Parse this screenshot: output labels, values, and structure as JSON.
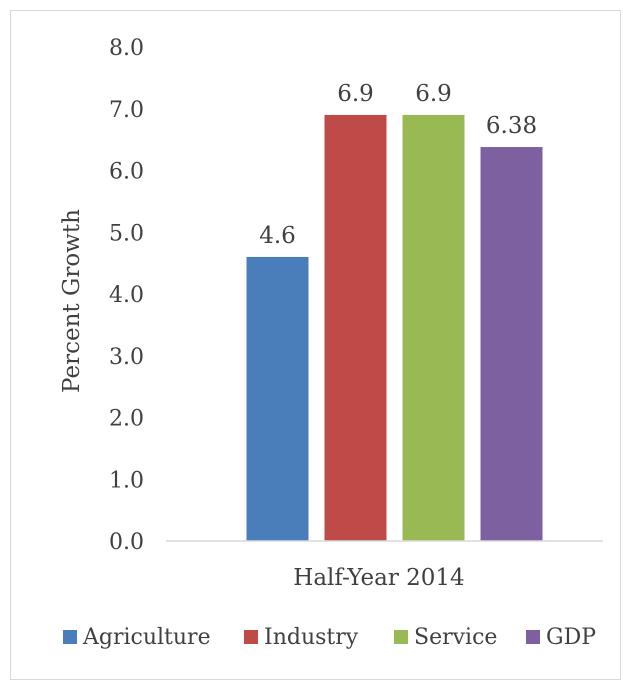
{
  "chart_data": {
    "type": "bar",
    "title": "",
    "xlabel": "Half-Year 2014",
    "ylabel": "Percent Growth",
    "ylim": [
      0,
      8
    ],
    "yticks": [
      "0.0",
      "1.0",
      "2.0",
      "3.0",
      "4.0",
      "5.0",
      "6.0",
      "7.0",
      "8.0"
    ],
    "grid": false,
    "legend_position": "bottom",
    "categories": [
      "Half-Year 2014"
    ],
    "series": [
      {
        "name": "Agriculture",
        "values": [
          4.6
        ],
        "label": "4.6",
        "color": "#4a7ebb"
      },
      {
        "name": "Industry",
        "values": [
          6.9
        ],
        "label": "6.9",
        "color": "#be4b48"
      },
      {
        "name": "Service",
        "values": [
          6.9
        ],
        "label": "6.9",
        "color": "#98b954"
      },
      {
        "name": "GDP",
        "values": [
          6.38
        ],
        "label": "6.38",
        "color": "#7d60a0"
      }
    ]
  }
}
